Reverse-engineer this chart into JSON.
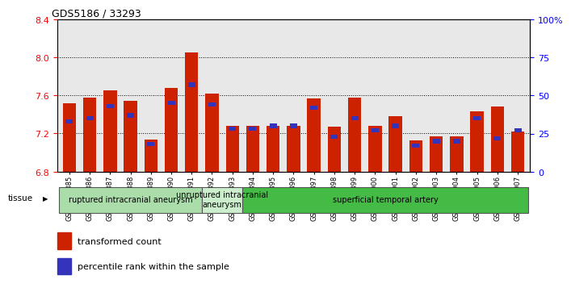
{
  "title": "GDS5186 / 33293",
  "samples": [
    "GSM1306885",
    "GSM1306886",
    "GSM1306887",
    "GSM1306888",
    "GSM1306889",
    "GSM1306890",
    "GSM1306891",
    "GSM1306892",
    "GSM1306893",
    "GSM1306894",
    "GSM1306895",
    "GSM1306896",
    "GSM1306897",
    "GSM1306898",
    "GSM1306899",
    "GSM1306900",
    "GSM1306901",
    "GSM1306902",
    "GSM1306903",
    "GSM1306904",
    "GSM1306905",
    "GSM1306906",
    "GSM1306907"
  ],
  "red_values": [
    7.52,
    7.58,
    7.65,
    7.54,
    7.14,
    7.68,
    8.05,
    7.62,
    7.28,
    7.28,
    7.28,
    7.28,
    7.57,
    7.27,
    7.58,
    7.28,
    7.38,
    7.13,
    7.17,
    7.17,
    7.43,
    7.48,
    7.22
  ],
  "blue_values": [
    33,
    35,
    43,
    37,
    18,
    45,
    57,
    44,
    28,
    28,
    30,
    30,
    42,
    23,
    35,
    27,
    30,
    17,
    20,
    20,
    35,
    22,
    27
  ],
  "ylim_left": [
    6.8,
    8.4
  ],
  "ylim_right": [
    0,
    100
  ],
  "yticks_left": [
    6.8,
    7.2,
    7.6,
    8.0,
    8.4
  ],
  "yticks_right": [
    0,
    25,
    50,
    75,
    100
  ],
  "ytick_labels_right": [
    "0",
    "25",
    "50",
    "75",
    "100%"
  ],
  "bar_color": "#cc2200",
  "blue_color": "#3333bb",
  "bg_color": "#e8e8e8",
  "groups": [
    {
      "label": "ruptured intracranial aneurysm",
      "start": 0,
      "end": 7,
      "color": "#aaddaa"
    },
    {
      "label": "unruptured intracranial\naneurysm",
      "start": 7,
      "end": 9,
      "color": "#cceecc"
    },
    {
      "label": "superficial temporal artery",
      "start": 9,
      "end": 23,
      "color": "#44bb44"
    }
  ],
  "legend_items": [
    "transformed count",
    "percentile rank within the sample"
  ],
  "base_value": 6.8
}
